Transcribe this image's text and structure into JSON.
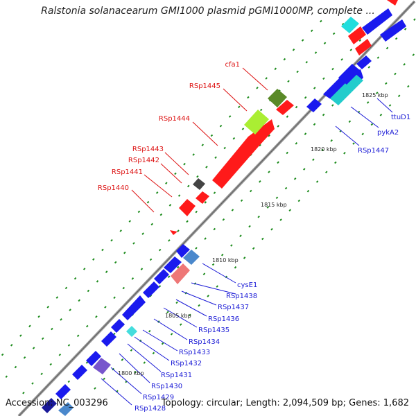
{
  "title": "Ralstonia solanacearum GMI1000 plasmid pGMI1000MP, complete ...",
  "footer": {
    "accession": "Accession: NC_003296",
    "topology": "Topology: circular; Length: 2,094,509 bp; Genes: 1,682"
  },
  "colors": {
    "forward_label": "#dd1111",
    "reverse_label": "#1a1ad6",
    "backbone": "#9a9a9a",
    "tick": "#1a8a1a"
  },
  "kbp_markers": [
    "1800 kbp",
    "1805 kbp",
    "1810 kbp",
    "1815 kbp",
    "1820 kbp",
    "1825 kbp"
  ],
  "genes_forward": [
    "cfa1",
    "RSp1445",
    "RSp1444",
    "RSp1443",
    "RSp1442",
    "RSp1441",
    "RSp1440"
  ],
  "genes_reverse": [
    "ttuD1",
    "pykA2",
    "RSp1447",
    "cysE1",
    "RSp1438",
    "RSp1437",
    "RSp1436",
    "RSp1435",
    "RSp1434",
    "RSp1433",
    "RSp1432",
    "RSp1431",
    "RSp1430",
    "RSp1429",
    "RSp1428"
  ]
}
